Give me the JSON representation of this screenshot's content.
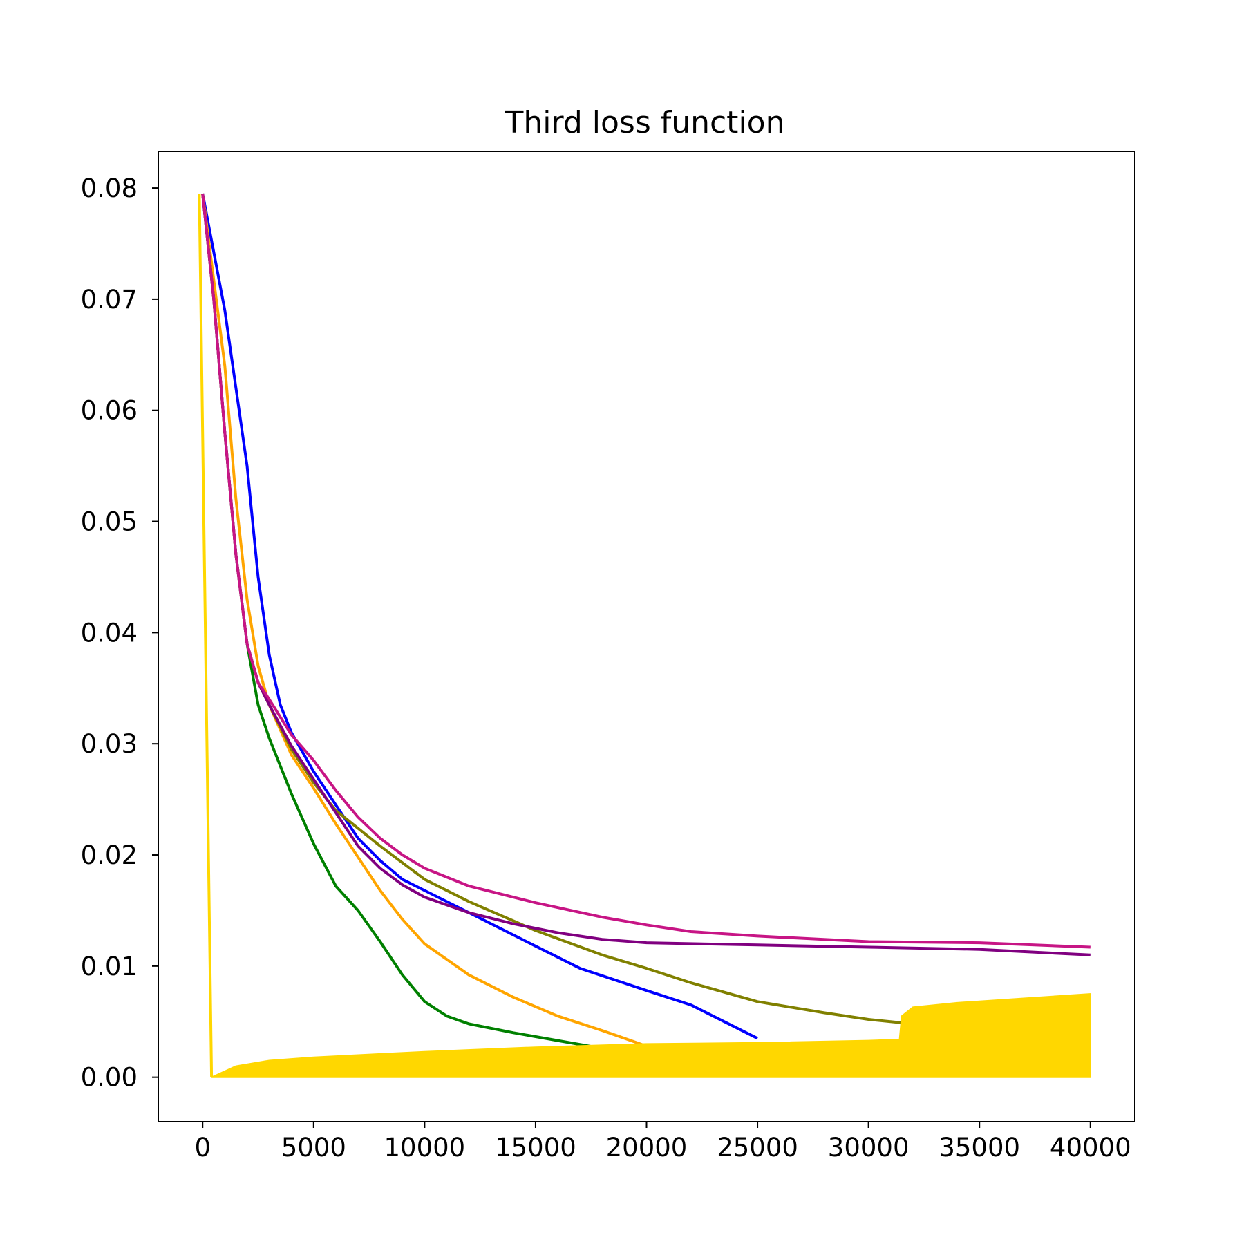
{
  "chart_data": {
    "type": "line",
    "title": "Third loss function",
    "xlabel": "",
    "ylabel": "",
    "xlim": [
      -2000,
      42000
    ],
    "ylim": [
      -0.004,
      0.0833
    ],
    "xticks": [
      0,
      5000,
      10000,
      15000,
      20000,
      25000,
      30000,
      35000,
      40000
    ],
    "xtick_labels": [
      "0",
      "5000",
      "10000",
      "15000",
      "20000",
      "25000",
      "30000",
      "35000",
      "40000"
    ],
    "yticks": [
      0.0,
      0.01,
      0.02,
      0.03,
      0.04,
      0.05,
      0.06,
      0.07,
      0.08
    ],
    "ytick_labels": [
      "0.00",
      "0.01",
      "0.02",
      "0.03",
      "0.04",
      "0.05",
      "0.06",
      "0.07",
      "0.08"
    ],
    "grid": false,
    "legend": "none",
    "series": [
      {
        "color": "#0000ff",
        "points": [
          [
            0,
            0.0795
          ],
          [
            1000,
            0.069
          ],
          [
            2000,
            0.055
          ],
          [
            2500,
            0.045
          ],
          [
            3000,
            0.038
          ],
          [
            3500,
            0.0335
          ],
          [
            4000,
            0.031
          ],
          [
            5000,
            0.0275
          ],
          [
            6000,
            0.0245
          ],
          [
            7000,
            0.0215
          ],
          [
            8000,
            0.0195
          ],
          [
            9000,
            0.0178
          ],
          [
            10000,
            0.0168
          ],
          [
            12000,
            0.0148
          ],
          [
            15000,
            0.0118
          ],
          [
            17000,
            0.0098
          ],
          [
            20000,
            0.0078
          ],
          [
            22000,
            0.0065
          ],
          [
            25000,
            0.0035
          ]
        ]
      },
      {
        "color": "#ffa500",
        "points": [
          [
            0,
            0.0795
          ],
          [
            1000,
            0.064
          ],
          [
            1500,
            0.052
          ],
          [
            2000,
            0.043
          ],
          [
            2500,
            0.037
          ],
          [
            3000,
            0.0335
          ],
          [
            4000,
            0.029
          ],
          [
            5000,
            0.026
          ],
          [
            6000,
            0.0228
          ],
          [
            7000,
            0.0198
          ],
          [
            8000,
            0.0168
          ],
          [
            9000,
            0.0142
          ],
          [
            10000,
            0.012
          ],
          [
            12000,
            0.0092
          ],
          [
            14000,
            0.0072
          ],
          [
            16000,
            0.0055
          ],
          [
            18000,
            0.0042
          ],
          [
            20000,
            0.0028
          ],
          [
            21000,
            0.0018
          ],
          [
            22400,
            0.0001
          ],
          [
            23000,
            0.0001
          ]
        ]
      },
      {
        "color": "#008000",
        "points": [
          [
            0,
            0.0795
          ],
          [
            500,
            0.07
          ],
          [
            1000,
            0.058
          ],
          [
            1500,
            0.047
          ],
          [
            2000,
            0.039
          ],
          [
            2500,
            0.0335
          ],
          [
            3000,
            0.0305
          ],
          [
            4000,
            0.0255
          ],
          [
            5000,
            0.021
          ],
          [
            6000,
            0.0172
          ],
          [
            7000,
            0.015
          ],
          [
            8000,
            0.0122
          ],
          [
            9000,
            0.0092
          ],
          [
            10000,
            0.0068
          ],
          [
            11000,
            0.0055
          ],
          [
            12000,
            0.0048
          ],
          [
            14000,
            0.004
          ],
          [
            16000,
            0.0033
          ],
          [
            20000,
            0.0019
          ],
          [
            24000,
            0.001
          ],
          [
            28000,
            0.0001
          ],
          [
            33000,
            0.0001
          ]
        ]
      },
      {
        "color": "#808000",
        "points": [
          [
            0,
            0.0795
          ],
          [
            500,
            0.07
          ],
          [
            1000,
            0.058
          ],
          [
            1500,
            0.047
          ],
          [
            2000,
            0.039
          ],
          [
            2500,
            0.0355
          ],
          [
            3000,
            0.0335
          ],
          [
            4000,
            0.0295
          ],
          [
            5000,
            0.0265
          ],
          [
            6000,
            0.024
          ],
          [
            8000,
            0.0208
          ],
          [
            10000,
            0.0178
          ],
          [
            12000,
            0.0158
          ],
          [
            15000,
            0.0132
          ],
          [
            18000,
            0.011
          ],
          [
            20000,
            0.0098
          ],
          [
            22000,
            0.0085
          ],
          [
            25000,
            0.0068
          ],
          [
            28000,
            0.0058
          ],
          [
            30000,
            0.0052
          ],
          [
            32000,
            0.0048
          ],
          [
            35000,
            0.0044
          ],
          [
            38000,
            0.004
          ],
          [
            40000,
            0.0036
          ]
        ]
      },
      {
        "color": "#800080",
        "points": [
          [
            0,
            0.0795
          ],
          [
            500,
            0.07
          ],
          [
            1000,
            0.058
          ],
          [
            1500,
            0.047
          ],
          [
            2000,
            0.039
          ],
          [
            2500,
            0.0355
          ],
          [
            3000,
            0.0335
          ],
          [
            4000,
            0.0298
          ],
          [
            5000,
            0.0268
          ],
          [
            6000,
            0.0238
          ],
          [
            7000,
            0.0208
          ],
          [
            8000,
            0.0188
          ],
          [
            9000,
            0.0173
          ],
          [
            10000,
            0.0162
          ],
          [
            12000,
            0.0148
          ],
          [
            14000,
            0.0138
          ],
          [
            16000,
            0.013
          ],
          [
            18000,
            0.0124
          ],
          [
            20000,
            0.0121
          ],
          [
            25000,
            0.0119
          ],
          [
            30000,
            0.0117
          ],
          [
            35000,
            0.0115
          ],
          [
            40000,
            0.011
          ]
        ]
      },
      {
        "color": "#c71585",
        "points": [
          [
            0,
            0.0795
          ],
          [
            500,
            0.07
          ],
          [
            1000,
            0.058
          ],
          [
            1500,
            0.047
          ],
          [
            2000,
            0.039
          ],
          [
            2500,
            0.0355
          ],
          [
            3000,
            0.034
          ],
          [
            4000,
            0.0308
          ],
          [
            5000,
            0.0285
          ],
          [
            6000,
            0.0258
          ],
          [
            7000,
            0.0234
          ],
          [
            8000,
            0.0215
          ],
          [
            9000,
            0.02
          ],
          [
            10000,
            0.0188
          ],
          [
            12000,
            0.0172
          ],
          [
            15000,
            0.0157
          ],
          [
            18000,
            0.0144
          ],
          [
            20000,
            0.0137
          ],
          [
            22000,
            0.0131
          ],
          [
            25000,
            0.0127
          ],
          [
            30000,
            0.0122
          ],
          [
            35000,
            0.0121
          ],
          [
            40000,
            0.0117
          ]
        ]
      },
      {
        "color": "#ffd700",
        "band": true,
        "points": [
          [
            -150,
            0.0795
          ],
          [
            400,
            0.0
          ]
        ],
        "upper": [
          [
            400,
            0.0
          ],
          [
            1500,
            0.001
          ],
          [
            3000,
            0.0015
          ],
          [
            5000,
            0.0018
          ],
          [
            8000,
            0.0021
          ],
          [
            10000,
            0.0023
          ],
          [
            15000,
            0.0027
          ],
          [
            20000,
            0.003
          ],
          [
            25000,
            0.0031
          ],
          [
            30000,
            0.0033
          ],
          [
            31400,
            0.0034
          ],
          [
            31500,
            0.0055
          ],
          [
            32000,
            0.0063
          ],
          [
            34000,
            0.0067
          ],
          [
            37000,
            0.0071
          ],
          [
            40000,
            0.0075
          ]
        ],
        "lower": [
          [
            400,
            0.0
          ],
          [
            40000,
            0.0
          ]
        ]
      }
    ]
  }
}
